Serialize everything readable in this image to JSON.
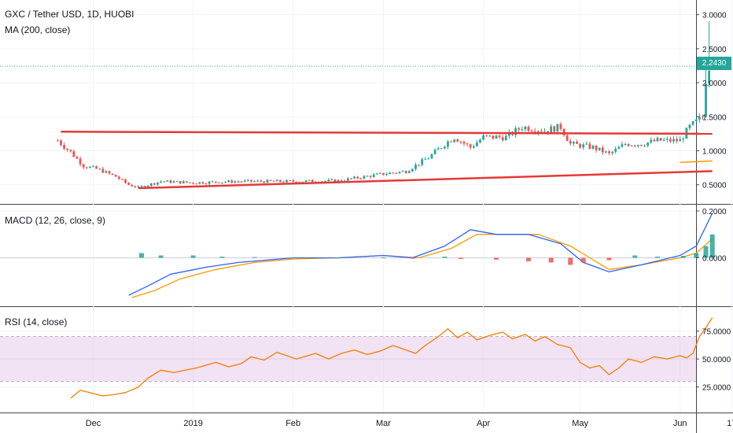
{
  "panes": {
    "main": {
      "title": "GXC / Tether USD, 1D, HUOBI",
      "indicator": "MA (200, close)",
      "yticks": [
        "3.0000",
        "2.5000",
        "2.0000",
        "1.5000",
        "1.0000",
        "0.5000"
      ],
      "last_price": "2.2430"
    },
    "macd": {
      "title": "MACD (12, 26, close, 9)",
      "yticks": [
        "0.2000",
        "0.0000"
      ]
    },
    "rsi": {
      "title": "RSI (14, close)",
      "yticks": [
        "75.0000",
        "50.0000",
        "25.0000"
      ]
    }
  },
  "xaxis": {
    "ticks": [
      "Dec",
      "2019",
      "Feb",
      "Mar",
      "Apr",
      "May",
      "Jun",
      "17"
    ]
  },
  "colors": {
    "up": "#26a69a",
    "down": "#ef5350",
    "trendline": "#e53935",
    "macd_line": "#2962ff",
    "signal_line": "#ff9800",
    "rsi_line": "#f57c00",
    "rsi_band": "#e1bee7",
    "price_line": "#26a69a"
  },
  "chart_data": [
    {
      "type": "candlestick",
      "title": "GXC / Tether USD, 1D, HUOBI",
      "ylim": [
        0.3,
        3.1
      ],
      "x_range": [
        "2018-11-20",
        "2019-06-18"
      ],
      "series": [
        {
          "name": "GXC / Tether USD",
          "close_path": [
            [
              "2018-11-20",
              1.15
            ],
            [
              "2018-11-24",
              0.98
            ],
            [
              "2018-11-28",
              0.78
            ],
            [
              "2018-12-03",
              0.72
            ],
            [
              "2018-12-08",
              0.62
            ],
            [
              "2018-12-12",
              0.5
            ],
            [
              "2018-12-15",
              0.46
            ],
            [
              "2018-12-22",
              0.55
            ],
            [
              "2019-01-01",
              0.53
            ],
            [
              "2019-01-15",
              0.55
            ],
            [
              "2019-02-01",
              0.55
            ],
            [
              "2019-02-15",
              0.56
            ],
            [
              "2019-03-01",
              0.66
            ],
            [
              "2019-03-08",
              0.7
            ],
            [
              "2019-03-15",
              0.9
            ],
            [
              "2019-03-20",
              1.1
            ],
            [
              "2019-03-23",
              1.2
            ],
            [
              "2019-03-28",
              1.05
            ],
            [
              "2019-04-01",
              1.2
            ],
            [
              "2019-04-08",
              1.2
            ],
            [
              "2019-04-13",
              1.35
            ],
            [
              "2019-04-20",
              1.3
            ],
            [
              "2019-04-25",
              1.35
            ],
            [
              "2019-04-28",
              1.1
            ],
            [
              "2019-05-05",
              1.05
            ],
            [
              "2019-05-10",
              0.95
            ],
            [
              "2019-05-15",
              1.1
            ],
            [
              "2019-05-20",
              1.1
            ],
            [
              "2019-05-25",
              1.15
            ],
            [
              "2019-06-01",
              1.15
            ],
            [
              "2019-06-04",
              1.35
            ],
            [
              "2019-06-08",
              1.5
            ],
            [
              "2019-06-09",
              2.05
            ],
            [
              "2019-06-10",
              2.243
            ]
          ]
        }
      ],
      "last_price": 2.243,
      "trendlines": [
        {
          "from": [
            "2018-11-21",
            1.28
          ],
          "to": [
            "2019-06-11",
            1.25
          ]
        },
        {
          "from": [
            "2018-12-15",
            0.45
          ],
          "to": [
            "2019-06-11",
            0.7
          ]
        }
      ]
    },
    {
      "type": "line",
      "title": "MACD (12, 26, close, 9)",
      "ylim": [
        -0.19,
        0.22
      ],
      "series": [
        {
          "name": "MACD",
          "points": [
            [
              "2018-12-12",
              -0.16
            ],
            [
              "2018-12-18",
              -0.12
            ],
            [
              "2018-12-25",
              -0.07
            ],
            [
              "2019-01-05",
              -0.04
            ],
            [
              "2019-01-15",
              -0.02
            ],
            [
              "2019-02-01",
              0.0
            ],
            [
              "2019-02-15",
              0.0
            ],
            [
              "2019-03-01",
              0.01
            ],
            [
              "2019-03-10",
              0.0
            ],
            [
              "2019-03-20",
              0.05
            ],
            [
              "2019-03-28",
              0.12
            ],
            [
              "2019-04-05",
              0.1
            ],
            [
              "2019-04-15",
              0.1
            ],
            [
              "2019-04-25",
              0.06
            ],
            [
              "2019-05-02",
              -0.02
            ],
            [
              "2019-05-10",
              -0.06
            ],
            [
              "2019-05-20",
              -0.03
            ],
            [
              "2019-06-01",
              0.01
            ],
            [
              "2019-06-06",
              0.05
            ],
            [
              "2019-06-11",
              0.19
            ]
          ]
        },
        {
          "name": "Signal",
          "points": [
            [
              "2018-12-13",
              -0.17
            ],
            [
              "2018-12-20",
              -0.14
            ],
            [
              "2018-12-28",
              -0.09
            ],
            [
              "2019-01-08",
              -0.05
            ],
            [
              "2019-01-20",
              -0.02
            ],
            [
              "2019-02-01",
              -0.005
            ],
            [
              "2019-02-15",
              0.0
            ],
            [
              "2019-03-01",
              0.01
            ],
            [
              "2019-03-12",
              0.0
            ],
            [
              "2019-03-22",
              0.04
            ],
            [
              "2019-03-30",
              0.1
            ],
            [
              "2019-04-08",
              0.1
            ],
            [
              "2019-04-18",
              0.1
            ],
            [
              "2019-04-28",
              0.05
            ],
            [
              "2019-05-04",
              0.0
            ],
            [
              "2019-05-10",
              -0.05
            ],
            [
              "2019-05-20",
              -0.03
            ],
            [
              "2019-06-01",
              0.0
            ],
            [
              "2019-06-06",
              0.02
            ],
            [
              "2019-06-11",
              0.08
            ]
          ]
        }
      ],
      "histogram": [
        [
          "2018-12-16",
          0.02
        ],
        [
          "2018-12-22",
          0.01
        ],
        [
          "2019-01-01",
          0.01
        ],
        [
          "2019-01-10",
          0.005
        ],
        [
          "2019-01-20",
          0.003
        ],
        [
          "2019-02-01",
          0.002
        ],
        [
          "2019-02-15",
          0.001
        ],
        [
          "2019-03-01",
          0.002
        ],
        [
          "2019-03-10",
          -0.003
        ],
        [
          "2019-03-20",
          0.005
        ],
        [
          "2019-03-25",
          -0.005
        ],
        [
          "2019-04-05",
          -0.008
        ],
        [
          "2019-04-15",
          -0.015
        ],
        [
          "2019-04-22",
          -0.02
        ],
        [
          "2019-04-28",
          -0.03
        ],
        [
          "2019-05-02",
          -0.02
        ],
        [
          "2019-05-10",
          -0.01
        ],
        [
          "2019-05-18",
          0.01
        ],
        [
          "2019-05-25",
          0.005
        ],
        [
          "2019-06-02",
          0.008
        ],
        [
          "2019-06-06",
          0.02
        ],
        [
          "2019-06-09",
          0.05
        ],
        [
          "2019-06-11",
          0.1
        ]
      ]
    },
    {
      "type": "line",
      "title": "RSI (14, close)",
      "ylim": [
        5,
        95
      ],
      "bands": [
        30,
        70
      ],
      "series": [
        {
          "name": "RSI",
          "points": [
            [
              "2018-11-24",
              15
            ],
            [
              "2018-11-27",
              22
            ],
            [
              "2018-11-30",
              20
            ],
            [
              "2018-12-04",
              17
            ],
            [
              "2018-12-07",
              18
            ],
            [
              "2018-12-11",
              20
            ],
            [
              "2018-12-15",
              25
            ],
            [
              "2018-12-18",
              33
            ],
            [
              "2018-12-22",
              40
            ],
            [
              "2018-12-26",
              38
            ],
            [
              "2019-01-02",
              42
            ],
            [
              "2019-01-08",
              47
            ],
            [
              "2019-01-12",
              43
            ],
            [
              "2019-01-16",
              46
            ],
            [
              "2019-01-19",
              52
            ],
            [
              "2019-01-23",
              49
            ],
            [
              "2019-01-27",
              56
            ],
            [
              "2019-02-02",
              50
            ],
            [
              "2019-02-08",
              55
            ],
            [
              "2019-02-12",
              50
            ],
            [
              "2019-02-16",
              55
            ],
            [
              "2019-02-20",
              58
            ],
            [
              "2019-02-24",
              54
            ],
            [
              "2019-02-28",
              57
            ],
            [
              "2019-03-04",
              62
            ],
            [
              "2019-03-08",
              58
            ],
            [
              "2019-03-11",
              55
            ],
            [
              "2019-03-14",
              62
            ],
            [
              "2019-03-18",
              70
            ],
            [
              "2019-03-21",
              77
            ],
            [
              "2019-03-24",
              69
            ],
            [
              "2019-03-27",
              74
            ],
            [
              "2019-03-30",
              67
            ],
            [
              "2019-04-03",
              71
            ],
            [
              "2019-04-07",
              74
            ],
            [
              "2019-04-10",
              68
            ],
            [
              "2019-04-14",
              72
            ],
            [
              "2019-04-17",
              66
            ],
            [
              "2019-04-20",
              70
            ],
            [
              "2019-04-24",
              63
            ],
            [
              "2019-04-28",
              60
            ],
            [
              "2019-05-01",
              47
            ],
            [
              "2019-05-04",
              42
            ],
            [
              "2019-05-07",
              44
            ],
            [
              "2019-05-10",
              36
            ],
            [
              "2019-05-13",
              42
            ],
            [
              "2019-05-16",
              50
            ],
            [
              "2019-05-20",
              47
            ],
            [
              "2019-05-24",
              52
            ],
            [
              "2019-05-28",
              50
            ],
            [
              "2019-06-01",
              53
            ],
            [
              "2019-06-03",
              51
            ],
            [
              "2019-06-05",
              55
            ],
            [
              "2019-06-07",
              70
            ],
            [
              "2019-06-09",
              78
            ],
            [
              "2019-06-11",
              87
            ]
          ]
        }
      ]
    }
  ]
}
